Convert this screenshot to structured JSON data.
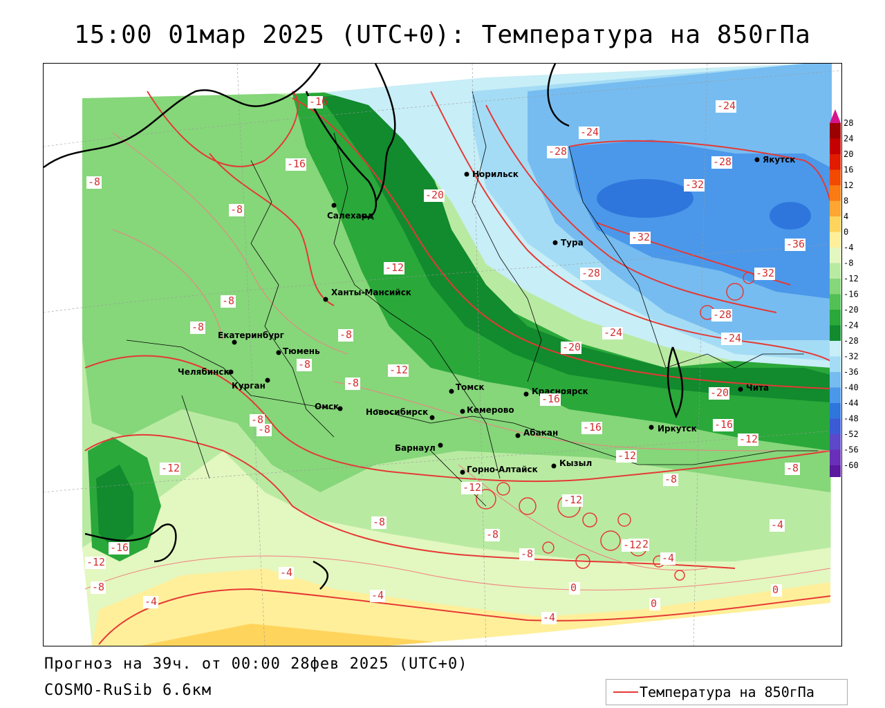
{
  "title": "15:00 01мар 2025 (UTC+0): Температура на 850гПа",
  "forecast": "Прогноз на 39ч. от 00:00 28фев 2025 (UTC+0)",
  "model": "COSMO-RuSib 6.6км",
  "legend": {
    "label": "Температура на 850гПа",
    "color": "#e53935"
  },
  "colorbar": {
    "ticks": [
      "28",
      "24",
      "20",
      "16",
      "12",
      "8",
      "4",
      "0",
      "-4",
      "-8",
      "-12",
      "-16",
      "-20",
      "-24",
      "-28",
      "-32",
      "-36",
      "-40",
      "-44",
      "-48",
      "-52",
      "-56",
      "-60"
    ],
    "colors": [
      "#9c0000",
      "#c40000",
      "#e01b00",
      "#f24a00",
      "#fb7a12",
      "#ffa531",
      "#ffd45c",
      "#ffef9a",
      "#e3f7c0",
      "#b9eaa2",
      "#86d67a",
      "#52c054",
      "#2aa83a",
      "#128a2e",
      "#c8eef7",
      "#a5dcf5",
      "#76bcf0",
      "#4b98ea",
      "#2e76dc",
      "#3b5bd6",
      "#5c48c9",
      "#6a2fb8",
      "#5a1aa0"
    ]
  },
  "cities": [
    {
      "name": "Норильск"
    },
    {
      "name": "Якутск"
    },
    {
      "name": "Салехард"
    },
    {
      "name": "Тура"
    },
    {
      "name": "Ханты-Мансийск"
    },
    {
      "name": "Екатеринбург"
    },
    {
      "name": "Тюмень"
    },
    {
      "name": "Челябинск"
    },
    {
      "name": "Курган"
    },
    {
      "name": "Омск"
    },
    {
      "name": "Томск"
    },
    {
      "name": "Красноярск"
    },
    {
      "name": "Новосибирск"
    },
    {
      "name": "Кемерово"
    },
    {
      "name": "Абакан"
    },
    {
      "name": "Иркутск"
    },
    {
      "name": "Чита"
    },
    {
      "name": "Барнаул"
    },
    {
      "name": "Горно-Алтайск"
    },
    {
      "name": "Кызыл"
    }
  ],
  "isotherm_labels": [
    "-16",
    "-16",
    "-8",
    "-8",
    "-8",
    "-8",
    "-8",
    "-8",
    "-8",
    "-20",
    "-24",
    "-28",
    "-24",
    "-28",
    "-32",
    "-32",
    "-36",
    "-28",
    "-32",
    "-12",
    "-12",
    "-20",
    "-24",
    "-28",
    "-24",
    "-20",
    "-16",
    "-16",
    "-16",
    "-12",
    "-12",
    "-12",
    "-8",
    "-8",
    "-12",
    "-12",
    "-8",
    "-8",
    "-8",
    "-12",
    "-12",
    "-8",
    "-4",
    "-4",
    "-4",
    "-4",
    "-4",
    "0",
    "0",
    "0",
    "-12",
    "-16",
    "-8",
    "-4",
    "-8"
  ]
}
